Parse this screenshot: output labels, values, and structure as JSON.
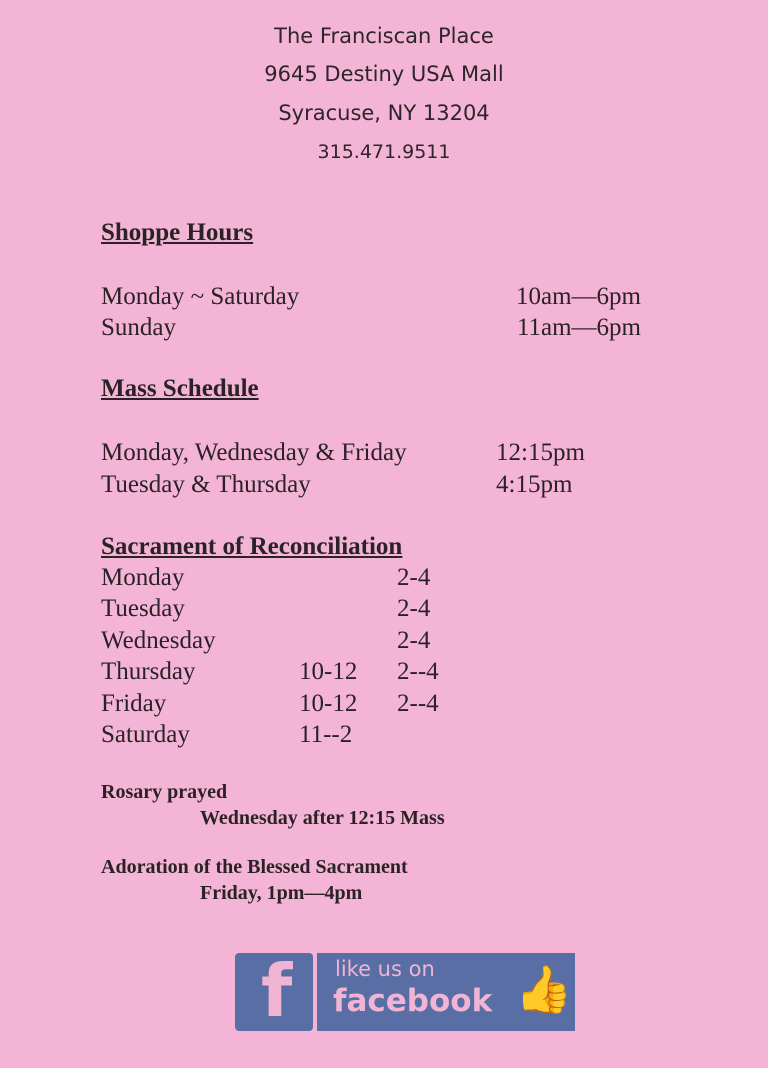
{
  "header": {
    "name": "The Franciscan Place",
    "address": "9645 Destiny USA Mall",
    "city": "Syracuse, NY 13204",
    "phone": "315.471.9511"
  },
  "shoppe_hours": {
    "title": "Shoppe Hours",
    "rows": [
      {
        "day": "Monday ~ Saturday",
        "hours": "10am—6pm"
      },
      {
        "day": "Sunday",
        "hours": "11am—6pm"
      }
    ]
  },
  "mass": {
    "title": "Mass Schedule",
    "rows": [
      {
        "day": "Monday, Wednesday & Friday",
        "time": "12:15pm"
      },
      {
        "day": "Tuesday & Thursday",
        "time": "4:15pm"
      }
    ]
  },
  "reconciliation": {
    "title": "Sacrament of Reconciliation",
    "rows": [
      {
        "day": "Monday",
        "morning": "",
        "afternoon": "2-4"
      },
      {
        "day": "Tuesday",
        "morning": "",
        "afternoon": "2-4"
      },
      {
        "day": "Wednesday",
        "morning": "",
        "afternoon": "2-4"
      },
      {
        "day": "Thursday",
        "morning": "10-12",
        "afternoon": "2--4"
      },
      {
        "day": "Friday",
        "morning": "10-12",
        "afternoon": "2--4"
      },
      {
        "day": "Saturday",
        "morning": "11--2",
        "afternoon": ""
      }
    ]
  },
  "rosary": {
    "title": "Rosary prayed",
    "detail": "Wednesday after 12:15 Mass"
  },
  "adoration": {
    "title": "Adoration of the Blessed Sacrament",
    "detail": "Friday, 1pm—4pm"
  },
  "facebook": {
    "line1": "like us on",
    "line2": "facebook",
    "icon": "facebook-f-icon",
    "thumb_icon": "thumbs-up-icon",
    "color": "#5a6ea6"
  }
}
